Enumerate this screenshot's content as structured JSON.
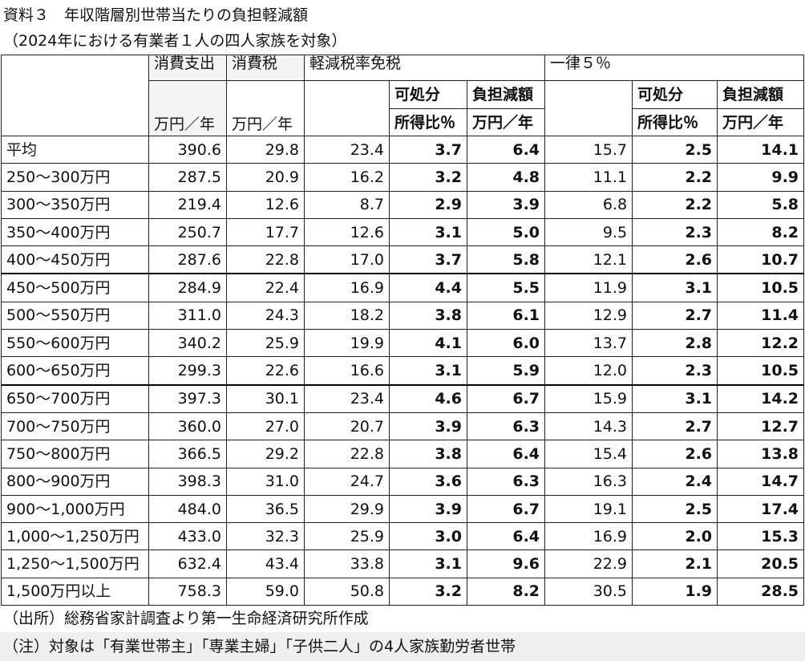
{
  "title": "資料３　年収階層別世帯当たりの負担軽減額",
  "subtitle": "（2024年における有業者１人の四人家族を対象）",
  "header": {
    "consumption_label": "消費支出",
    "consumption_tax_label": "消費税",
    "reduced_rate_label": "軽減税率免税",
    "flat_rate_label": "一律５％",
    "unit": "万円／年",
    "disposable_line1": "可処分",
    "disposable_line2": "所得比％",
    "burden_line1": "負担減額",
    "burden_line2": "万円／年"
  },
  "rows": [
    {
      "label": "平均",
      "consumption": "390.6",
      "tax": "29.8",
      "reduced_amount": "23.4",
      "reduced_ratio": "3.7",
      "reduced_burden": "6.4",
      "flat_amount": "15.7",
      "flat_ratio": "2.5",
      "flat_burden": "14.1"
    },
    {
      "label": "250～300万円",
      "consumption": "287.5",
      "tax": "20.9",
      "reduced_amount": "16.2",
      "reduced_ratio": "3.2",
      "reduced_burden": "4.8",
      "flat_amount": "11.1",
      "flat_ratio": "2.2",
      "flat_burden": "9.9"
    },
    {
      "label": "300～350万円",
      "consumption": "219.4",
      "tax": "12.6",
      "reduced_amount": "8.7",
      "reduced_ratio": "2.9",
      "reduced_burden": "3.9",
      "flat_amount": "6.8",
      "flat_ratio": "2.2",
      "flat_burden": "5.8"
    },
    {
      "label": "350～400万円",
      "consumption": "250.7",
      "tax": "17.7",
      "reduced_amount": "12.6",
      "reduced_ratio": "3.1",
      "reduced_burden": "5.0",
      "flat_amount": "9.5",
      "flat_ratio": "2.3",
      "flat_burden": "8.2"
    },
    {
      "label": "400～450万円",
      "consumption": "287.6",
      "tax": "22.8",
      "reduced_amount": "17.0",
      "reduced_ratio": "3.7",
      "reduced_burden": "5.8",
      "flat_amount": "12.1",
      "flat_ratio": "2.6",
      "flat_burden": "10.7"
    },
    {
      "label": "450～500万円",
      "consumption": "284.9",
      "tax": "22.4",
      "reduced_amount": "16.9",
      "reduced_ratio": "4.4",
      "reduced_burden": "5.5",
      "flat_amount": "11.9",
      "flat_ratio": "3.1",
      "flat_burden": "10.5"
    },
    {
      "label": "500～550万円",
      "consumption": "311.0",
      "tax": "24.3",
      "reduced_amount": "18.2",
      "reduced_ratio": "3.8",
      "reduced_burden": "6.1",
      "flat_amount": "12.9",
      "flat_ratio": "2.7",
      "flat_burden": "11.4"
    },
    {
      "label": "550～600万円",
      "consumption": "340.2",
      "tax": "25.9",
      "reduced_amount": "19.9",
      "reduced_ratio": "4.1",
      "reduced_burden": "6.0",
      "flat_amount": "13.7",
      "flat_ratio": "2.8",
      "flat_burden": "12.2"
    },
    {
      "label": "600～650万円",
      "consumption": "299.3",
      "tax": "22.6",
      "reduced_amount": "16.6",
      "reduced_ratio": "3.1",
      "reduced_burden": "5.9",
      "flat_amount": "12.0",
      "flat_ratio": "2.3",
      "flat_burden": "10.5"
    },
    {
      "label": "650～700万円",
      "consumption": "397.3",
      "tax": "30.1",
      "reduced_amount": "23.4",
      "reduced_ratio": "4.6",
      "reduced_burden": "6.7",
      "flat_amount": "15.9",
      "flat_ratio": "3.1",
      "flat_burden": "14.2"
    },
    {
      "label": "700～750万円",
      "consumption": "360.0",
      "tax": "27.0",
      "reduced_amount": "20.7",
      "reduced_ratio": "3.9",
      "reduced_burden": "6.3",
      "flat_amount": "14.3",
      "flat_ratio": "2.7",
      "flat_burden": "12.7"
    },
    {
      "label": "750～800万円",
      "consumption": "366.5",
      "tax": "29.2",
      "reduced_amount": "22.8",
      "reduced_ratio": "3.8",
      "reduced_burden": "6.4",
      "flat_amount": "15.4",
      "flat_ratio": "2.6",
      "flat_burden": "13.8"
    },
    {
      "label": "800～900万円",
      "consumption": "398.3",
      "tax": "31.0",
      "reduced_amount": "24.7",
      "reduced_ratio": "3.6",
      "reduced_burden": "6.3",
      "flat_amount": "16.3",
      "flat_ratio": "2.4",
      "flat_burden": "14.7"
    },
    {
      "label": "900～1,000万円",
      "consumption": "484.0",
      "tax": "36.5",
      "reduced_amount": "29.9",
      "reduced_ratio": "3.9",
      "reduced_burden": "6.7",
      "flat_amount": "19.1",
      "flat_ratio": "2.5",
      "flat_burden": "17.4"
    },
    {
      "label": "1,000～1,250万円",
      "consumption": "433.0",
      "tax": "32.3",
      "reduced_amount": "25.9",
      "reduced_ratio": "3.0",
      "reduced_burden": "6.4",
      "flat_amount": "16.9",
      "flat_ratio": "2.0",
      "flat_burden": "15.3"
    },
    {
      "label": "1,250～1,500万円",
      "consumption": "632.4",
      "tax": "43.4",
      "reduced_amount": "33.8",
      "reduced_ratio": "3.1",
      "reduced_burden": "9.6",
      "flat_amount": "22.9",
      "flat_ratio": "2.1",
      "flat_burden": "20.5"
    },
    {
      "label": "1,500万円以上",
      "consumption": "758.3",
      "tax": "59.0",
      "reduced_amount": "50.8",
      "reduced_ratio": "3.2",
      "reduced_burden": "8.2",
      "flat_amount": "30.5",
      "flat_ratio": "1.9",
      "flat_burden": "28.5"
    }
  ],
  "source": "（出所）総務省家計調査より第一生命経済研究所作成",
  "note": "（注）対象は「有業世帯主」「専業主婦」「子供二人」の4人家族勤労者世帯"
}
